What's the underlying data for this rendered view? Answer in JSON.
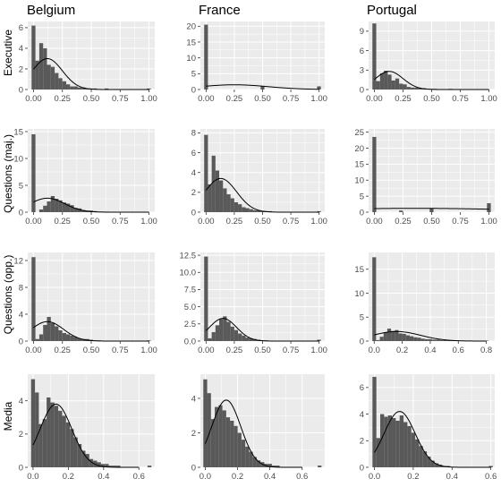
{
  "figure": {
    "columns": [
      "Belgium",
      "France",
      "Portugal"
    ],
    "rows": [
      "Executive",
      "Questions (maj.)",
      "Questions (opp.)",
      "Media"
    ],
    "colors": {
      "panel_bg": "#ebebeb",
      "grid": "#ffffff",
      "bar": "#595959",
      "curve": "#000000"
    }
  },
  "chart_data": [
    {
      "type": "bar",
      "column": "Belgium",
      "row": "Executive",
      "xlim": [
        -0.05,
        1.05
      ],
      "ylim": [
        0,
        6.6
      ],
      "xticks": [
        0,
        0.25,
        0.5,
        0.75,
        1
      ],
      "xtick_labels": [
        "0.00",
        "0.25",
        "0.50",
        "0.75",
        "1.00"
      ],
      "yticks": [
        0,
        2,
        4,
        6
      ],
      "ytick_labels": [
        "0",
        "2",
        "4",
        "6"
      ],
      "bin_start": -0.0167,
      "bin_width": 0.0333,
      "values": [
        6.2,
        2.8,
        4.5,
        4.0,
        2.4,
        2.2,
        1.6,
        1.1,
        0.8,
        0.5,
        0.3,
        0.3,
        0.2,
        0.2,
        0.1,
        0.1,
        0.1,
        0.0,
        0.0,
        0.1,
        0.0,
        0.0,
        0.0,
        0.0,
        0.0,
        0.0,
        0.0,
        0.0,
        0.0,
        0.0,
        0.1
      ],
      "curve": {
        "mean": 0.12,
        "sd": 0.13,
        "peak": 3.0
      }
    },
    {
      "type": "bar",
      "column": "France",
      "row": "Executive",
      "xlim": [
        -0.05,
        1.05
      ],
      "ylim": [
        0,
        21.5
      ],
      "xticks": [
        0,
        0.25,
        0.5,
        0.75,
        1
      ],
      "xtick_labels": [
        "0.00",
        "0.25",
        "0.50",
        "0.75",
        "1.00"
      ],
      "yticks": [
        0,
        5,
        10,
        15,
        20
      ],
      "ytick_labels": [
        "0",
        "5",
        "10",
        "15",
        "20"
      ],
      "bin_start": -0.0167,
      "bin_width": 0.0333,
      "values": [
        20.5,
        0.0,
        0.0,
        0.0,
        0.0,
        0.0,
        0.0,
        0.0,
        0.0,
        0.0,
        0.0,
        0.0,
        0.0,
        0.0,
        0.0,
        1.0,
        0.0,
        0.0,
        0.0,
        0.0,
        0.0,
        0.0,
        0.0,
        0.0,
        0.0,
        0.0,
        0.0,
        0.0,
        0.0,
        0.0,
        1.0
      ],
      "curve": {
        "mean": 0.25,
        "sd": 0.3,
        "peak": 1.5
      }
    },
    {
      "type": "bar",
      "column": "Portugal",
      "row": "Executive",
      "xlim": [
        -0.05,
        1.05
      ],
      "ylim": [
        0,
        10.5
      ],
      "xticks": [
        0,
        0.25,
        0.5,
        0.75,
        1
      ],
      "xtick_labels": [
        "0.00",
        "0.25",
        "0.50",
        "0.75",
        "1.00"
      ],
      "yticks": [
        0,
        3,
        6,
        9
      ],
      "ytick_labels": [
        "0",
        "3",
        "6",
        "9"
      ],
      "bin_start": -0.0167,
      "bin_width": 0.0333,
      "values": [
        10.2,
        1.3,
        2.5,
        2.9,
        2.3,
        1.4,
        1.7,
        0.9,
        0.8,
        0.4,
        0.3,
        0.3,
        0.2,
        0.2,
        0.1,
        0.1,
        0.1,
        0.0,
        0.0,
        0.0,
        0.1,
        0.0,
        0.0,
        0.0,
        0.0,
        0.0,
        0.0,
        0.0,
        0.0,
        0.0,
        0.0
      ],
      "curve": {
        "mean": 0.13,
        "sd": 0.12,
        "peak": 2.8
      }
    },
    {
      "type": "bar",
      "column": "Belgium",
      "row": "Questions (maj.)",
      "xlim": [
        -0.05,
        1.05
      ],
      "ylim": [
        0,
        15.5
      ],
      "xticks": [
        0,
        0.25,
        0.5,
        0.75,
        1
      ],
      "xtick_labels": [
        "0.00",
        "0.25",
        "0.50",
        "0.75",
        "1.00"
      ],
      "yticks": [
        0,
        5,
        10,
        15
      ],
      "ytick_labels": [
        "0",
        "5",
        "10",
        "15"
      ],
      "bin_start": -0.0167,
      "bin_width": 0.0333,
      "values": [
        14.5,
        0.0,
        0.5,
        1.2,
        2.0,
        3.0,
        2.5,
        2.2,
        1.8,
        1.6,
        1.3,
        0.8,
        0.7,
        0.4,
        0.3,
        0.3,
        0.2,
        0.1,
        0.1,
        0.1,
        0.0,
        0.0,
        0.0,
        0.0,
        0.0,
        0.0,
        0.0,
        0.0,
        0.0,
        0.0,
        0.0
      ],
      "curve": {
        "mean": 0.12,
        "sd": 0.15,
        "peak": 2.6
      }
    },
    {
      "type": "bar",
      "column": "France",
      "row": "Questions (maj.)",
      "xlim": [
        -0.05,
        1.05
      ],
      "ylim": [
        0,
        8.4
      ],
      "xticks": [
        0,
        0.25,
        0.5,
        0.75,
        1
      ],
      "xtick_labels": [
        "0.00",
        "0.25",
        "0.50",
        "0.75",
        "1.00"
      ],
      "yticks": [
        0,
        2,
        4,
        6,
        8
      ],
      "ytick_labels": [
        "0",
        "2",
        "4",
        "6",
        "8"
      ],
      "bin_start": -0.0167,
      "bin_width": 0.0333,
      "values": [
        7.8,
        2.8,
        5.7,
        4.2,
        3.2,
        2.4,
        1.8,
        1.4,
        1.0,
        0.8,
        0.5,
        0.4,
        0.3,
        0.2,
        0.2,
        0.1,
        0.1,
        0.1,
        0.0,
        0.0,
        0.0,
        0.0,
        0.0,
        0.0,
        0.0,
        0.0,
        0.0,
        0.0,
        0.0,
        0.0,
        0.1
      ],
      "curve": {
        "mean": 0.13,
        "sd": 0.14,
        "peak": 3.4
      }
    },
    {
      "type": "bar",
      "column": "Portugal",
      "row": "Questions (maj.)",
      "xlim": [
        -0.05,
        1.05
      ],
      "ylim": [
        0,
        26
      ],
      "xticks": [
        0,
        0.25,
        0.5,
        0.75,
        1
      ],
      "xtick_labels": [
        "0.00",
        "0.25",
        "0.50",
        "0.75",
        "1.00"
      ],
      "yticks": [
        0,
        5,
        10,
        15,
        20,
        25
      ],
      "ytick_labels": [
        "0",
        "5",
        "10",
        "15",
        "20",
        "25"
      ],
      "bin_start": -0.0167,
      "bin_width": 0.0333,
      "values": [
        23.5,
        0.0,
        0.0,
        0.0,
        0.0,
        0.0,
        0.0,
        0.5,
        0.0,
        0.0,
        0.0,
        0.0,
        0.0,
        0.0,
        0.0,
        1.2,
        0.0,
        0.0,
        0.0,
        0.0,
        0.0,
        0.0,
        0.0,
        0.0,
        0.0,
        0.0,
        0.0,
        0.0,
        0.0,
        0.0,
        2.8
      ],
      "curve": {
        "mean": 0.35,
        "sd": 0.9,
        "peak": 1.2
      }
    },
    {
      "type": "bar",
      "column": "Belgium",
      "row": "Questions (opp.)",
      "xlim": [
        -0.05,
        1.05
      ],
      "ylim": [
        0,
        13.2
      ],
      "xticks": [
        0,
        0.25,
        0.5,
        0.75,
        1
      ],
      "xtick_labels": [
        "0.00",
        "0.25",
        "0.50",
        "0.75",
        "1.00"
      ],
      "yticks": [
        0,
        4,
        8,
        12
      ],
      "ytick_labels": [
        "0",
        "4",
        "8",
        "12"
      ],
      "bin_start": -0.0167,
      "bin_width": 0.0333,
      "values": [
        12.5,
        0.3,
        1.0,
        2.4,
        3.6,
        2.7,
        2.2,
        1.6,
        1.2,
        1.0,
        0.8,
        0.6,
        0.4,
        0.3,
        0.3,
        0.2,
        0.1,
        0.1,
        0.0,
        0.0,
        0.0,
        0.0,
        0.0,
        0.0,
        0.0,
        0.0,
        0.0,
        0.0,
        0.0,
        0.0,
        0.1
      ],
      "curve": {
        "mean": 0.12,
        "sd": 0.14,
        "peak": 2.9
      }
    },
    {
      "type": "bar",
      "column": "France",
      "row": "Questions (opp.)",
      "xlim": [
        -0.05,
        1.05
      ],
      "ylim": [
        0,
        12.9
      ],
      "xticks": [
        0,
        0.25,
        0.5,
        0.75,
        1
      ],
      "xtick_labels": [
        "0.00",
        "0.25",
        "0.50",
        "0.75",
        "1.00"
      ],
      "yticks": [
        0,
        2.5,
        5,
        7.5,
        10,
        12.5
      ],
      "ytick_labels": [
        "0.0",
        "2.5",
        "5.0",
        "7.5",
        "10.0",
        "12.5"
      ],
      "bin_start": -0.0167,
      "bin_width": 0.0333,
      "values": [
        12.3,
        0.4,
        1.3,
        2.3,
        3.2,
        3.6,
        2.8,
        2.1,
        1.6,
        1.1,
        0.8,
        0.5,
        0.4,
        0.3,
        0.2,
        0.1,
        0.1,
        0.0,
        0.0,
        0.0,
        0.0,
        0.0,
        0.0,
        0.0,
        0.0,
        0.0,
        0.0,
        0.0,
        0.0,
        0.0,
        0.2
      ],
      "curve": {
        "mean": 0.15,
        "sd": 0.12,
        "peak": 3.3
      }
    },
    {
      "type": "bar",
      "column": "Portugal",
      "row": "Questions (opp.)",
      "xlim": [
        -0.04,
        0.86
      ],
      "ylim": [
        0,
        18.5
      ],
      "xticks": [
        0,
        0.2,
        0.4,
        0.6,
        0.8
      ],
      "xtick_labels": [
        "0.0",
        "0.2",
        "0.4",
        "0.6",
        "0.8"
      ],
      "yticks": [
        0,
        5,
        10,
        15
      ],
      "ytick_labels": [
        "0",
        "5",
        "10",
        "15"
      ],
      "bin_start": -0.0133,
      "bin_width": 0.0267,
      "values": [
        17.5,
        0.2,
        0.9,
        1.8,
        2.6,
        2.1,
        2.3,
        1.6,
        1.5,
        1.2,
        1.0,
        0.8,
        0.7,
        0.5,
        0.4,
        0.4,
        0.3,
        0.3,
        0.2,
        0.2,
        0.1,
        0.1,
        0.1,
        0.1,
        0.0,
        0.0,
        0.0,
        0.0,
        0.0,
        0.0,
        0.1
      ],
      "curve": {
        "mean": 0.16,
        "sd": 0.17,
        "peak": 2.0
      }
    },
    {
      "type": "bar",
      "column": "Belgium",
      "row": "Media",
      "xlim": [
        -0.03,
        0.69
      ],
      "ylim": [
        0,
        5.6
      ],
      "xticks": [
        0,
        0.2,
        0.4,
        0.6
      ],
      "xtick_labels": [
        "0.0",
        "0.2",
        "0.4",
        "0.6"
      ],
      "yticks": [
        0,
        2,
        4
      ],
      "ytick_labels": [
        "0",
        "2",
        "4"
      ],
      "bin_start": -0.011,
      "bin_width": 0.022,
      "values": [
        5.3,
        4.5,
        2.6,
        2.9,
        4.2,
        3.9,
        3.7,
        3.4,
        3.1,
        2.7,
        2.3,
        1.8,
        1.4,
        1.0,
        0.8,
        0.5,
        0.4,
        0.3,
        0.2,
        0.2,
        0.1,
        0.1,
        0.1,
        0.0,
        0.0,
        0.0,
        0.0,
        0.0,
        0.0,
        0.0,
        0.1
      ],
      "curve": {
        "mean": 0.13,
        "sd": 0.09,
        "peak": 3.8
      }
    },
    {
      "type": "bar",
      "column": "France",
      "row": "Media",
      "xlim": [
        -0.03,
        0.74
      ],
      "ylim": [
        0,
        5.4
      ],
      "xticks": [
        0,
        0.2,
        0.4,
        0.6
      ],
      "xtick_labels": [
        "0.0",
        "0.2",
        "0.4",
        "0.6"
      ],
      "yticks": [
        0,
        2,
        4
      ],
      "ytick_labels": [
        "0",
        "2",
        "4"
      ],
      "bin_start": -0.0118,
      "bin_width": 0.0236,
      "values": [
        5.1,
        4.3,
        2.8,
        3.5,
        3.6,
        3.3,
        2.9,
        2.7,
        2.4,
        2.0,
        1.6,
        1.2,
        0.9,
        0.6,
        0.4,
        0.3,
        0.2,
        0.2,
        0.1,
        0.1,
        0.0,
        0.0,
        0.0,
        0.0,
        0.0,
        0.0,
        0.0,
        0.0,
        0.0,
        0.0,
        0.1
      ],
      "curve": {
        "mean": 0.13,
        "sd": 0.09,
        "peak": 3.9
      }
    },
    {
      "type": "bar",
      "column": "Portugal",
      "row": "Media",
      "xlim": [
        -0.03,
        0.62
      ],
      "ylim": [
        0,
        7.0
      ],
      "xticks": [
        0,
        0.2,
        0.4,
        0.6
      ],
      "xtick_labels": [
        "0.0",
        "0.2",
        "0.4",
        "0.6"
      ],
      "yticks": [
        0,
        2,
        4,
        6
      ],
      "ytick_labels": [
        "0",
        "2",
        "4",
        "6"
      ],
      "bin_start": -0.01,
      "bin_width": 0.02,
      "values": [
        6.8,
        2.2,
        4.0,
        3.8,
        3.9,
        3.7,
        3.5,
        3.9,
        3.4,
        3.1,
        2.6,
        2.1,
        1.6,
        1.2,
        0.8,
        0.5,
        0.3,
        0.2,
        0.1,
        0.1,
        0.0,
        0.0,
        0.0,
        0.0,
        0.0,
        0.0,
        0.0,
        0.0,
        0.0,
        0.0,
        0.1
      ],
      "curve": {
        "mean": 0.13,
        "sd": 0.08,
        "peak": 4.2
      }
    }
  ]
}
